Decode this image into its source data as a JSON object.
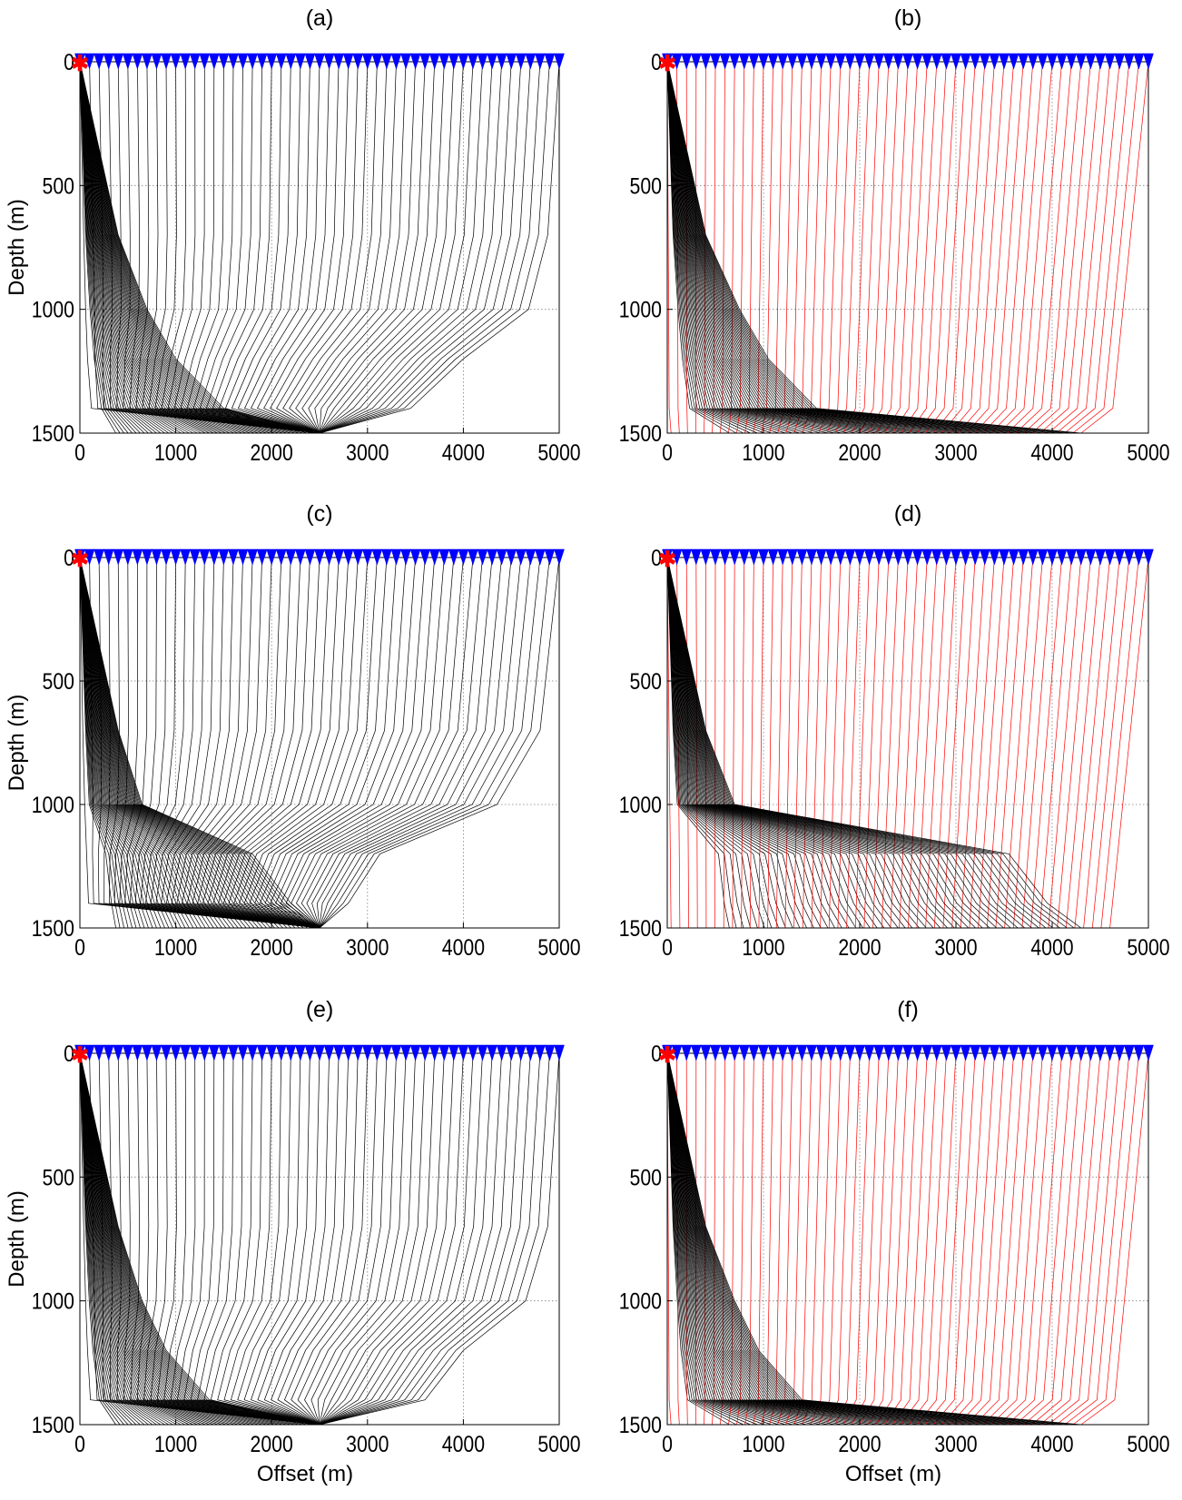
{
  "figure": {
    "panel_labels": [
      "(a)",
      "(b)",
      "(c)",
      "(d)",
      "(e)",
      "(f)"
    ],
    "xlabel": "Offset (m)",
    "ylabel": "Depth (m)"
  },
  "colors": {
    "receiver": "#0000ff",
    "source": "#ff0000",
    "ray_black": "#000000",
    "ray_red": "#ff0000",
    "grid": "#808080",
    "axis": "#000000"
  },
  "chart_data": [
    {
      "type": "line",
      "panel": "(a)",
      "xlabel": "",
      "ylabel": "Depth (m)",
      "xlim": [
        0,
        5000
      ],
      "ylim": [
        1500,
        0
      ],
      "xticks": [
        0,
        1000,
        2000,
        3000,
        4000,
        5000
      ],
      "yticks": [
        0,
        500,
        1000,
        1500
      ],
      "grid": true,
      "source": {
        "x": 0,
        "y": 0
      },
      "receivers": {
        "start": 0,
        "end": 5000,
        "count": 51
      },
      "rays": {
        "kind": "reflected",
        "color": "black",
        "count": 51,
        "interfaces": [
          {
            "depth": 0,
            "hx": 0
          },
          {
            "depth": 700,
            "hx": 400
          },
          {
            "depth": 1000,
            "hx": 700
          },
          {
            "depth": 1200,
            "hx": 1000
          },
          {
            "depth": 1400,
            "hx": 1500
          },
          {
            "depth": 1500,
            "hx": 2500
          }
        ],
        "upgoing_paths": [
          {
            "xs": 5000,
            "points": [
              [
                5000,
                0
              ],
              [
                4880,
                700
              ],
              [
                4680,
                1000
              ],
              [
                4000,
                1200
              ],
              [
                3450,
                1400
              ],
              [
                2500,
                1500
              ]
            ]
          },
          {
            "xs": 2500,
            "points": [
              [
                2500,
                0
              ],
              [
                2460,
                700
              ],
              [
                2420,
                1000
              ],
              [
                2380,
                1200
              ],
              [
                2290,
                1400
              ],
              [
                2500,
                1500
              ]
            ]
          },
          {
            "xs": 0,
            "points": [
              [
                0,
                0
              ],
              [
                40,
                700
              ],
              [
                60,
                1000
              ],
              [
                80,
                1200
              ],
              [
                120,
                1400
              ],
              [
                2500,
                1500
              ]
            ]
          }
        ]
      }
    },
    {
      "type": "line",
      "panel": "(b)",
      "xlabel": "",
      "ylabel": "",
      "xlim": [
        0,
        5000
      ],
      "ylim": [
        1500,
        0
      ],
      "xticks": [
        0,
        1000,
        2000,
        3000,
        4000,
        5000
      ],
      "yticks": [
        0,
        500,
        1000,
        1500
      ],
      "grid": true,
      "source": {
        "x": 0,
        "y": 0
      },
      "receivers": {
        "start": 0,
        "end": 5000,
        "count": 51
      },
      "rays": {
        "kind": "head_wave",
        "color": "red",
        "count": 51,
        "interfaces": [
          {
            "depth": 0,
            "hx": 0
          },
          {
            "depth": 700,
            "hx": 400
          },
          {
            "depth": 1000,
            "hx": 750
          },
          {
            "depth": 1200,
            "hx": 1050
          },
          {
            "depth": 1400,
            "hx": 1550
          },
          {
            "depth": 1500,
            "hx": 4300
          }
        ],
        "upgoing_paths": [
          {
            "xs": 5000,
            "points": [
              [
                5000,
                0
              ],
              [
                4630,
                1400
              ],
              [
                4300,
                1500
              ]
            ]
          },
          {
            "xs": 2500,
            "points": [
              [
                2500,
                0
              ],
              [
                2180,
                1400
              ],
              [
                1850,
                1500
              ]
            ]
          },
          {
            "xs": 0,
            "points": [
              [
                0,
                0
              ],
              [
                20,
                1400
              ],
              [
                40,
                1500
              ]
            ]
          }
        ]
      }
    },
    {
      "type": "line",
      "panel": "(c)",
      "xlabel": "",
      "ylabel": "Depth (m)",
      "xlim": [
        0,
        5000
      ],
      "ylim": [
        1500,
        0
      ],
      "xticks": [
        0,
        1000,
        2000,
        3000,
        4000,
        5000
      ],
      "yticks": [
        0,
        500,
        1000,
        1500
      ],
      "grid": true,
      "source": {
        "x": 0,
        "y": 0
      },
      "receivers": {
        "start": 0,
        "end": 5000,
        "count": 51
      },
      "rays": {
        "kind": "reflected",
        "color": "black",
        "count": 51,
        "interfaces": [
          {
            "depth": 0,
            "hx": 0
          },
          {
            "depth": 700,
            "hx": 400
          },
          {
            "depth": 1000,
            "hx": 650
          },
          {
            "depth": 1200,
            "hx": 1800
          },
          {
            "depth": 1400,
            "hx": 2200
          },
          {
            "depth": 1500,
            "hx": 2500
          }
        ],
        "upgoing_paths": [
          {
            "xs": 5000,
            "points": [
              [
                5000,
                0
              ],
              [
                4800,
                700
              ],
              [
                4350,
                1000
              ],
              [
                3130,
                1200
              ],
              [
                2800,
                1400
              ],
              [
                2500,
                1500
              ]
            ]
          },
          {
            "xs": 2500,
            "points": [
              [
                2500,
                0
              ],
              [
                2450,
                700
              ],
              [
                2400,
                1000
              ],
              [
                2250,
                1200
              ],
              [
                2200,
                1400
              ],
              [
                2500,
                1500
              ]
            ]
          },
          {
            "xs": 0,
            "points": [
              [
                0,
                0
              ],
              [
                30,
                700
              ],
              [
                50,
                1000
              ],
              [
                70,
                1200
              ],
              [
                90,
                1400
              ],
              [
                2500,
                1500
              ]
            ]
          }
        ]
      }
    },
    {
      "type": "line",
      "panel": "(d)",
      "xlabel": "",
      "ylabel": "",
      "xlim": [
        0,
        5000
      ],
      "ylim": [
        1500,
        0
      ],
      "xticks": [
        0,
        1000,
        2000,
        3000,
        4000,
        5000
      ],
      "yticks": [
        0,
        500,
        1000,
        1500
      ],
      "grid": true,
      "source": {
        "x": 0,
        "y": 0
      },
      "receivers": {
        "start": 0,
        "end": 5000,
        "count": 51
      },
      "rays": {
        "kind": "head_wave",
        "color": "red",
        "count": 51,
        "interfaces": [
          {
            "depth": 0,
            "hx": 0
          },
          {
            "depth": 700,
            "hx": 400
          },
          {
            "depth": 1000,
            "hx": 700
          },
          {
            "depth": 1200,
            "hx": 3550
          },
          {
            "depth": 1400,
            "hx": 3950
          },
          {
            "depth": 1500,
            "hx": 4300
          }
        ],
        "upgoing_paths": [
          {
            "xs": 5000,
            "points": [
              [
                5000,
                0
              ],
              [
                4600,
                1500
              ]
            ]
          },
          {
            "xs": 2500,
            "points": [
              [
                2500,
                0
              ],
              [
                2200,
                1500
              ]
            ]
          },
          {
            "xs": 0,
            "points": [
              [
                0,
                0
              ],
              [
                40,
                1500
              ]
            ]
          }
        ]
      }
    },
    {
      "type": "line",
      "panel": "(e)",
      "xlabel": "Offset (m)",
      "ylabel": "Depth (m)",
      "xlim": [
        0,
        5000
      ],
      "ylim": [
        1500,
        0
      ],
      "xticks": [
        0,
        1000,
        2000,
        3000,
        4000,
        5000
      ],
      "yticks": [
        0,
        500,
        1000,
        1500
      ],
      "grid": true,
      "source": {
        "x": 0,
        "y": 0
      },
      "receivers": {
        "start": 0,
        "end": 5000,
        "count": 51
      },
      "rays": {
        "kind": "reflected",
        "color": "black",
        "count": 51,
        "interfaces": [
          {
            "depth": 0,
            "hx": 0
          },
          {
            "depth": 700,
            "hx": 400
          },
          {
            "depth": 1000,
            "hx": 650
          },
          {
            "depth": 1200,
            "hx": 900
          },
          {
            "depth": 1400,
            "hx": 1350
          },
          {
            "depth": 1500,
            "hx": 2500
          }
        ],
        "upgoing_paths": [
          {
            "xs": 5000,
            "points": [
              [
                5000,
                0
              ],
              [
                4880,
                700
              ],
              [
                4650,
                1000
              ],
              [
                4000,
                1200
              ],
              [
                3600,
                1400
              ],
              [
                2500,
                1500
              ]
            ]
          },
          {
            "xs": 2500,
            "points": [
              [
                2500,
                0
              ],
              [
                2450,
                700
              ],
              [
                2420,
                1000
              ],
              [
                2380,
                1200
              ],
              [
                2300,
                1400
              ],
              [
                2500,
                1500
              ]
            ]
          },
          {
            "xs": 0,
            "points": [
              [
                0,
                0
              ],
              [
                40,
                700
              ],
              [
                60,
                1000
              ],
              [
                80,
                1200
              ],
              [
                110,
                1400
              ],
              [
                2500,
                1500
              ]
            ]
          }
        ]
      }
    },
    {
      "type": "line",
      "panel": "(f)",
      "xlabel": "Offset (m)",
      "ylabel": "",
      "xlim": [
        0,
        5000
      ],
      "ylim": [
        1500,
        0
      ],
      "xticks": [
        0,
        1000,
        2000,
        3000,
        4000,
        5000
      ],
      "yticks": [
        0,
        500,
        1000,
        1500
      ],
      "grid": true,
      "source": {
        "x": 0,
        "y": 0
      },
      "receivers": {
        "start": 0,
        "end": 5000,
        "count": 51
      },
      "rays": {
        "kind": "head_wave",
        "color": "red",
        "count": 51,
        "interfaces": [
          {
            "depth": 0,
            "hx": 0
          },
          {
            "depth": 700,
            "hx": 400
          },
          {
            "depth": 1000,
            "hx": 700
          },
          {
            "depth": 1200,
            "hx": 950
          },
          {
            "depth": 1400,
            "hx": 1400
          },
          {
            "depth": 1500,
            "hx": 4300
          }
        ],
        "upgoing_paths": [
          {
            "xs": 5000,
            "points": [
              [
                5000,
                0
              ],
              [
                4650,
                1400
              ],
              [
                4300,
                1500
              ]
            ]
          },
          {
            "xs": 2500,
            "points": [
              [
                2500,
                0
              ],
              [
                2200,
                1400
              ],
              [
                1850,
                1500
              ]
            ]
          },
          {
            "xs": 0,
            "points": [
              [
                0,
                0
              ],
              [
                20,
                1400
              ],
              [
                40,
                1500
              ]
            ]
          }
        ]
      }
    }
  ]
}
